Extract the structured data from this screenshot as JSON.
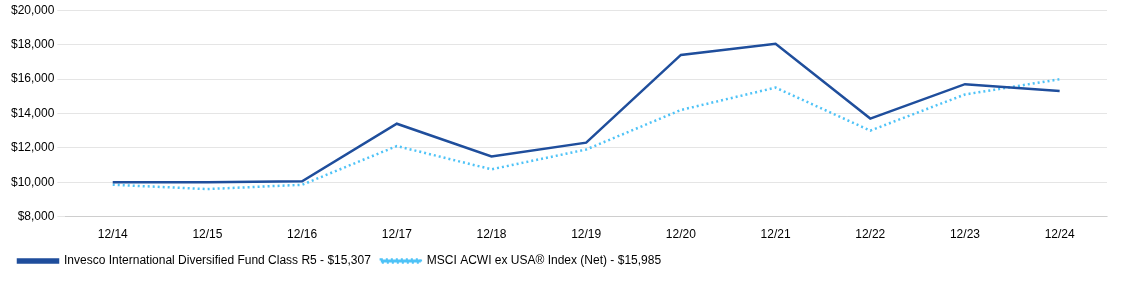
{
  "chart_data": {
    "type": "line",
    "categories": [
      "12/14",
      "12/15",
      "12/16",
      "12/17",
      "12/18",
      "12/19",
      "12/20",
      "12/21",
      "12/22",
      "12/23",
      "12/24"
    ],
    "series": [
      {
        "name": "Invesco International Diversified Fund Class R5 - $15,307",
        "color": "#1F4E9C",
        "line_style": "solid",
        "values": [
          10000,
          10000,
          10050,
          13400,
          11500,
          12300,
          17400,
          18050,
          13700,
          15700,
          15307
        ]
      },
      {
        "name": "MSCI ACWI ex USA® Index (Net) - $15,985",
        "color": "#4FC3F7",
        "line_style": "dotted",
        "values": [
          9850,
          9600,
          9850,
          12100,
          10750,
          11900,
          14200,
          15500,
          13000,
          15100,
          15985
        ]
      }
    ],
    "ylim": [
      8000,
      20000
    ],
    "yticks": [
      {
        "value": 8000,
        "label": "$8,000"
      },
      {
        "value": 10000,
        "label": "$10,000"
      },
      {
        "value": 12000,
        "label": "$12,000"
      },
      {
        "value": 14000,
        "label": "$14,000"
      },
      {
        "value": 16000,
        "label": "$16,000"
      },
      {
        "value": 18000,
        "label": "$18,000"
      },
      {
        "value": 20000,
        "label": "$20,000"
      }
    ],
    "grid": true,
    "legend": "bottom"
  }
}
